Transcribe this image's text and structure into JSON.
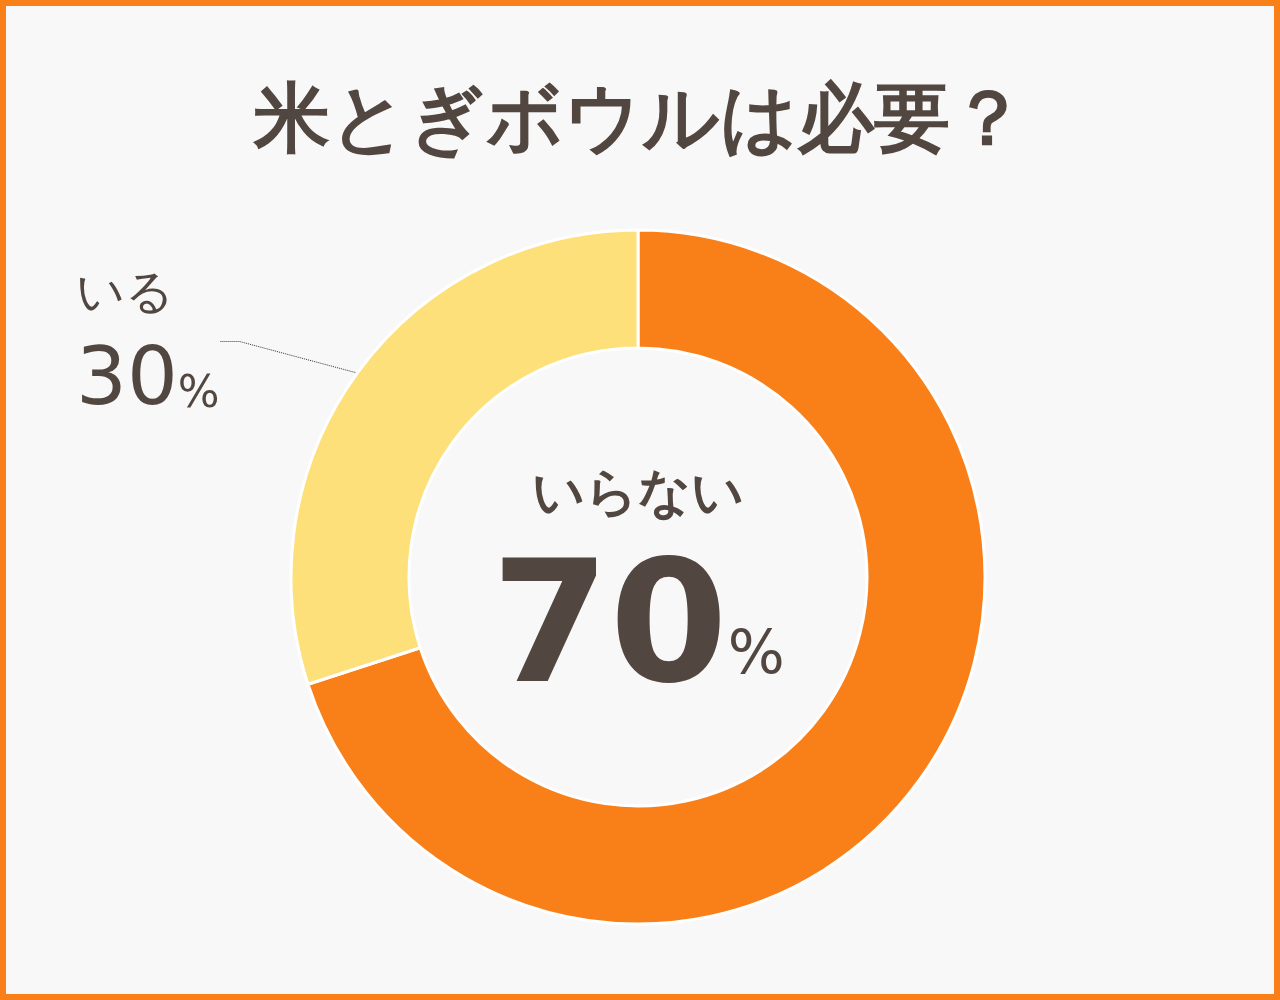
{
  "chart_data": {
    "type": "donut",
    "title": "米とぎボウルは必要？",
    "categories": [
      "いらない",
      "いる"
    ],
    "values": [
      70,
      30
    ],
    "colors": [
      "#f98019",
      "#fde07a"
    ],
    "value_labels": [
      "70%",
      "30%"
    ]
  }
}
